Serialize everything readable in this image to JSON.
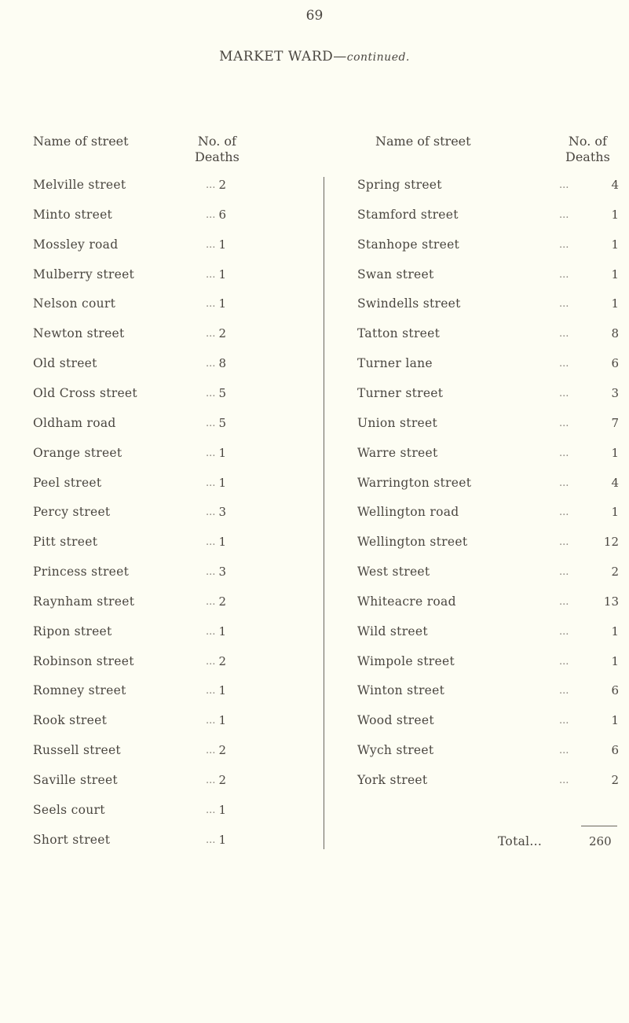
{
  "page_number": "69",
  "title": {
    "ward": "MARKET WARD—",
    "continued": "continued."
  },
  "headers": {
    "name": "Name of street",
    "deaths_line1": "No. of",
    "deaths_line2": "Deaths"
  },
  "leader": "...",
  "left_rows": [
    {
      "name": "Melville street",
      "deaths": "2"
    },
    {
      "name": "Minto street",
      "deaths": "6"
    },
    {
      "name": "Mossley road",
      "deaths": "1"
    },
    {
      "name": "Mulberry street",
      "deaths": "1"
    },
    {
      "name": "Nelson court",
      "deaths": "1"
    },
    {
      "name": "Newton street",
      "deaths": "2"
    },
    {
      "name": "Old street",
      "deaths": "8"
    },
    {
      "name": "Old Cross street",
      "deaths": "5"
    },
    {
      "name": "Oldham road",
      "deaths": "5"
    },
    {
      "name": "Orange street",
      "deaths": "1"
    },
    {
      "name": "Peel street",
      "deaths": "1"
    },
    {
      "name": "Percy street",
      "deaths": "3"
    },
    {
      "name": "Pitt street",
      "deaths": "1"
    },
    {
      "name": "Princess street",
      "deaths": "3"
    },
    {
      "name": "Raynham street",
      "deaths": "2"
    },
    {
      "name": "Ripon street",
      "deaths": "1"
    },
    {
      "name": "Robinson street",
      "deaths": "2"
    },
    {
      "name": "Romney street",
      "deaths": "1"
    },
    {
      "name": "Rook street",
      "deaths": "1"
    },
    {
      "name": "Russell street",
      "deaths": "2"
    },
    {
      "name": "Saville street",
      "deaths": "2"
    },
    {
      "name": "Seels court",
      "deaths": "1"
    },
    {
      "name": "Short street",
      "deaths": "1"
    }
  ],
  "right_rows": [
    {
      "name": "Spring street",
      "deaths": "4"
    },
    {
      "name": "Stamford street",
      "deaths": "1"
    },
    {
      "name": "Stanhope street",
      "deaths": "1"
    },
    {
      "name": "Swan street",
      "deaths": "1"
    },
    {
      "name": "Swindells street",
      "deaths": "1"
    },
    {
      "name": "Tatton street",
      "deaths": "8"
    },
    {
      "name": "Turner lane",
      "deaths": "6"
    },
    {
      "name": "Turner street",
      "deaths": "3"
    },
    {
      "name": "Union street",
      "deaths": "7"
    },
    {
      "name": "Warre street",
      "deaths": "1"
    },
    {
      "name": "Warrington street",
      "deaths": "4"
    },
    {
      "name": "Wellington road",
      "deaths": "1"
    },
    {
      "name": "Wellington street",
      "deaths": "12"
    },
    {
      "name": "West street",
      "deaths": "2"
    },
    {
      "name": "Whiteacre road",
      "deaths": "13"
    },
    {
      "name": "Wild street",
      "deaths": "1"
    },
    {
      "name": "Wimpole street",
      "deaths": "1"
    },
    {
      "name": "Winton street",
      "deaths": "6"
    },
    {
      "name": "Wood street",
      "deaths": "1"
    },
    {
      "name": "Wych street",
      "deaths": "6"
    },
    {
      "name": "York street",
      "deaths": "2"
    }
  ],
  "total": {
    "label": "Total...",
    "value": "260"
  }
}
